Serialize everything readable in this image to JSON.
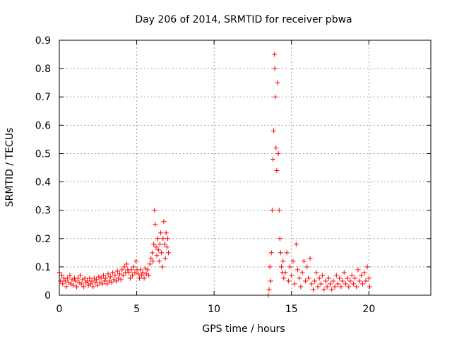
{
  "chart_data": {
    "type": "scatter",
    "title": "Day 206 of 2014, SRMTID for receiver pbwa",
    "xlabel": "GPS time / hours",
    "ylabel": "SRMTID / TECUs",
    "xlim": [
      0,
      24
    ],
    "ylim": [
      0,
      0.9
    ],
    "xticks": [
      0,
      5,
      10,
      15,
      20
    ],
    "yticks": [
      0,
      0.1,
      0.2,
      0.3,
      0.4,
      0.5,
      0.6,
      0.7,
      0.8,
      0.9
    ],
    "grid": true,
    "marker": "+",
    "color": "#ff0000",
    "series": [
      {
        "name": "pbwa",
        "points": [
          [
            0.0,
            0.08
          ],
          [
            0.08,
            0.05
          ],
          [
            0.15,
            0.07
          ],
          [
            0.22,
            0.04
          ],
          [
            0.3,
            0.06
          ],
          [
            0.38,
            0.05
          ],
          [
            0.45,
            0.03
          ],
          [
            0.52,
            0.06
          ],
          [
            0.6,
            0.045
          ],
          [
            0.68,
            0.07
          ],
          [
            0.75,
            0.04
          ],
          [
            0.82,
            0.055
          ],
          [
            0.9,
            0.035
          ],
          [
            0.98,
            0.06
          ],
          [
            1.05,
            0.05
          ],
          [
            1.12,
            0.03
          ],
          [
            1.2,
            0.06
          ],
          [
            1.28,
            0.045
          ],
          [
            1.35,
            0.07
          ],
          [
            1.42,
            0.04
          ],
          [
            1.5,
            0.055
          ],
          [
            1.58,
            0.03
          ],
          [
            1.65,
            0.06
          ],
          [
            1.72,
            0.045
          ],
          [
            1.8,
            0.05
          ],
          [
            1.88,
            0.035
          ],
          [
            1.95,
            0.06
          ],
          [
            2.02,
            0.04
          ],
          [
            2.1,
            0.05
          ],
          [
            2.18,
            0.03
          ],
          [
            2.25,
            0.06
          ],
          [
            2.32,
            0.045
          ],
          [
            2.4,
            0.055
          ],
          [
            2.48,
            0.035
          ],
          [
            2.55,
            0.065
          ],
          [
            2.62,
            0.045
          ],
          [
            2.7,
            0.06
          ],
          [
            2.78,
            0.04
          ],
          [
            2.85,
            0.07
          ],
          [
            2.92,
            0.05
          ],
          [
            3.0,
            0.06
          ],
          [
            3.08,
            0.04
          ],
          [
            3.15,
            0.075
          ],
          [
            3.22,
            0.05
          ],
          [
            3.3,
            0.065
          ],
          [
            3.38,
            0.045
          ],
          [
            3.45,
            0.08
          ],
          [
            3.52,
            0.055
          ],
          [
            3.6,
            0.07
          ],
          [
            3.68,
            0.05
          ],
          [
            3.75,
            0.085
          ],
          [
            3.82,
            0.06
          ],
          [
            3.9,
            0.075
          ],
          [
            3.98,
            0.055
          ],
          [
            4.05,
            0.09
          ],
          [
            4.12,
            0.07
          ],
          [
            4.2,
            0.1
          ],
          [
            4.28,
            0.08
          ],
          [
            4.35,
            0.11
          ],
          [
            4.42,
            0.09
          ],
          [
            4.5,
            0.08
          ],
          [
            4.58,
            0.06
          ],
          [
            4.65,
            0.09
          ],
          [
            4.72,
            0.07
          ],
          [
            4.8,
            0.1
          ],
          [
            4.88,
            0.08
          ],
          [
            4.95,
            0.12
          ],
          [
            5.02,
            0.09
          ],
          [
            5.1,
            0.075
          ],
          [
            5.18,
            0.06
          ],
          [
            5.25,
            0.09
          ],
          [
            5.32,
            0.07
          ],
          [
            5.4,
            0.08
          ],
          [
            5.48,
            0.06
          ],
          [
            5.55,
            0.095
          ],
          [
            5.62,
            0.075
          ],
          [
            5.7,
            0.09
          ],
          [
            5.78,
            0.07
          ],
          [
            5.85,
            0.11
          ],
          [
            5.92,
            0.13
          ],
          [
            6.0,
            0.15
          ],
          [
            6.05,
            0.12
          ],
          [
            6.1,
            0.18
          ],
          [
            6.15,
            0.3
          ],
          [
            6.2,
            0.25
          ],
          [
            6.25,
            0.17
          ],
          [
            6.3,
            0.14
          ],
          [
            6.35,
            0.2
          ],
          [
            6.4,
            0.16
          ],
          [
            6.45,
            0.12
          ],
          [
            6.5,
            0.18
          ],
          [
            6.55,
            0.22
          ],
          [
            6.6,
            0.15
          ],
          [
            6.65,
            0.1
          ],
          [
            6.7,
            0.2
          ],
          [
            6.75,
            0.26
          ],
          [
            6.8,
            0.18
          ],
          [
            6.85,
            0.13
          ],
          [
            6.9,
            0.22
          ],
          [
            6.95,
            0.17
          ],
          [
            7.0,
            0.2
          ],
          [
            7.05,
            0.15
          ],
          [
            13.5,
            0.0
          ],
          [
            13.55,
            0.02
          ],
          [
            13.6,
            0.1
          ],
          [
            13.65,
            0.05
          ],
          [
            13.7,
            0.15
          ],
          [
            13.75,
            0.3
          ],
          [
            13.8,
            0.48
          ],
          [
            13.85,
            0.58
          ],
          [
            13.9,
            0.85
          ],
          [
            13.92,
            0.8
          ],
          [
            13.95,
            0.7
          ],
          [
            14.0,
            0.52
          ],
          [
            14.05,
            0.44
          ],
          [
            14.1,
            0.75
          ],
          [
            14.15,
            0.5
          ],
          [
            14.2,
            0.3
          ],
          [
            14.25,
            0.2
          ],
          [
            14.3,
            0.15
          ],
          [
            14.35,
            0.1
          ],
          [
            14.4,
            0.08
          ],
          [
            14.45,
            0.12
          ],
          [
            14.5,
            0.06
          ],
          [
            14.6,
            0.08
          ],
          [
            14.7,
            0.15
          ],
          [
            14.8,
            0.05
          ],
          [
            14.9,
            0.1
          ],
          [
            15.0,
            0.07
          ],
          [
            15.1,
            0.12
          ],
          [
            15.2,
            0.04
          ],
          [
            15.3,
            0.18
          ],
          [
            15.4,
            0.09
          ],
          [
            15.5,
            0.06
          ],
          [
            15.6,
            0.03
          ],
          [
            15.7,
            0.08
          ],
          [
            15.8,
            0.12
          ],
          [
            15.9,
            0.05
          ],
          [
            16.0,
            0.1
          ],
          [
            16.1,
            0.06
          ],
          [
            16.2,
            0.13
          ],
          [
            16.3,
            0.04
          ],
          [
            16.4,
            0.02
          ],
          [
            16.5,
            0.05
          ],
          [
            16.6,
            0.08
          ],
          [
            16.7,
            0.03
          ],
          [
            16.8,
            0.06
          ],
          [
            16.9,
            0.04
          ],
          [
            17.0,
            0.07
          ],
          [
            17.1,
            0.02
          ],
          [
            17.2,
            0.05
          ],
          [
            17.3,
            0.03
          ],
          [
            17.4,
            0.06
          ],
          [
            17.5,
            0.04
          ],
          [
            17.6,
            0.02
          ],
          [
            17.7,
            0.05
          ],
          [
            17.8,
            0.03
          ],
          [
            17.9,
            0.07
          ],
          [
            18.0,
            0.04
          ],
          [
            18.1,
            0.06
          ],
          [
            18.2,
            0.03
          ],
          [
            18.3,
            0.05
          ],
          [
            18.4,
            0.08
          ],
          [
            18.5,
            0.04
          ],
          [
            18.6,
            0.06
          ],
          [
            18.7,
            0.03
          ],
          [
            18.8,
            0.05
          ],
          [
            18.9,
            0.07
          ],
          [
            19.0,
            0.04
          ],
          [
            19.1,
            0.06
          ],
          [
            19.2,
            0.03
          ],
          [
            19.3,
            0.09
          ],
          [
            19.4,
            0.05
          ],
          [
            19.5,
            0.07
          ],
          [
            19.6,
            0.04
          ],
          [
            19.7,
            0.08
          ],
          [
            19.8,
            0.05
          ],
          [
            19.9,
            0.1
          ],
          [
            20.0,
            0.06
          ],
          [
            20.05,
            0.03
          ]
        ]
      }
    ]
  }
}
